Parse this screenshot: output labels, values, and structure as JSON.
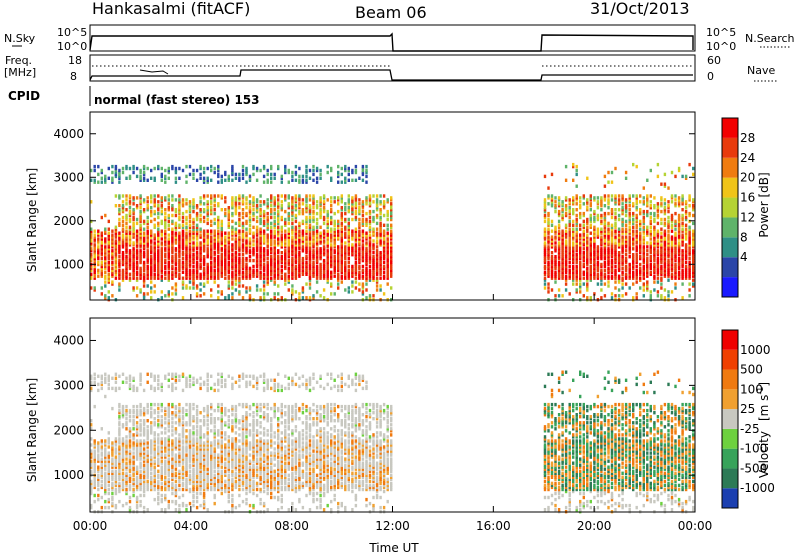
{
  "header": {
    "station": "Hankasalmi (fitACF)",
    "beam": "Beam 06",
    "date": "31/Oct/2013"
  },
  "status_panels": {
    "nsky_label": "N.Sky",
    "nsky_ticks": [
      "10^5",
      "10^0"
    ],
    "nsearch_label": "N.Search",
    "nsearch_ticks": [
      "10^5",
      "10^0"
    ],
    "freq_label_1": "Freq.",
    "freq_label_2": "[MHz]",
    "freq_ticks": [
      "18",
      "8"
    ],
    "nave_label": "Nave",
    "nave_ticks": [
      "60",
      "0"
    ],
    "cpid_label": "CPID",
    "cpid_text": "normal (fast stereo) 153",
    "gap_hours": [
      12,
      18
    ]
  },
  "chart_data": [
    {
      "type": "heatmap",
      "name": "power",
      "ylabel": "Slant Range [km]",
      "xlabel": "Time UT",
      "xlim": [
        0,
        24
      ],
      "ylim": [
        180,
        4500
      ],
      "yticks": [
        "4000",
        "3000",
        "2000",
        "1000"
      ],
      "colorbar": {
        "label": "Power [dB]",
        "ticks": [
          "28",
          "24",
          "20",
          "16",
          "12",
          "8",
          "4"
        ],
        "colors": [
          "#1a1aff",
          "#2a45a8",
          "#2f8f86",
          "#5fb36a",
          "#b5d334",
          "#f0c419",
          "#f07c10",
          "#e83a0c",
          "#f20000"
        ]
      },
      "data_coverage_hours": [
        [
          0,
          12
        ],
        [
          18,
          24
        ]
      ],
      "dominant_bands_km": [
        [
          700,
          1800
        ],
        [
          1800,
          2600
        ],
        [
          2800,
          3200
        ]
      ]
    },
    {
      "type": "heatmap",
      "name": "velocity",
      "ylabel": "Slant Range [km]",
      "xlabel": "Time UT",
      "xlim": [
        0,
        24
      ],
      "ylim": [
        180,
        4500
      ],
      "yticks": [
        "4000",
        "3000",
        "2000",
        "1000"
      ],
      "xticks": [
        "00:00",
        "04:00",
        "08:00",
        "12:00",
        "16:00",
        "20:00",
        "00:00"
      ],
      "colorbar": {
        "label_main": "Velocity",
        "label_unit": "[m s",
        "label_exp": "-1",
        "label_close": "]",
        "ticks": [
          "1000",
          "500",
          "100",
          "25",
          "-25",
          "-100",
          "-500",
          "-1000"
        ],
        "colors": [
          "#1b3fb0",
          "#2c7a56",
          "#37a35a",
          "#6dd13f",
          "#c8c8c0",
          "#f0a030",
          "#f07a10",
          "#f04000",
          "#f00000"
        ]
      },
      "data_coverage_hours": [
        [
          0,
          12
        ],
        [
          18,
          24
        ]
      ]
    }
  ]
}
